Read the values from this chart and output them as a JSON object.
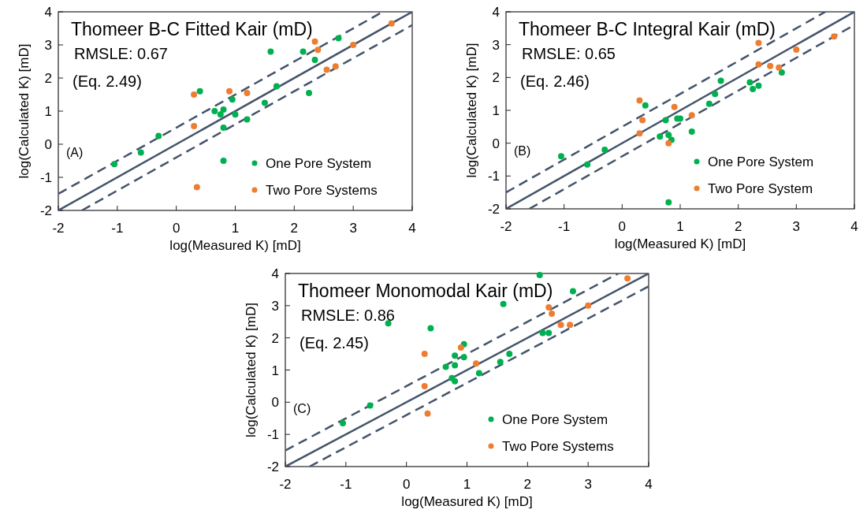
{
  "chart_data": [
    {
      "type": "scatter",
      "title": "Thomeer B-C Fitted Kair (mD)",
      "xlabel": "log(Measured K) [mD]",
      "ylabel": "log(Calculated K) [mD]",
      "annotations": [
        "RMSLE: 0.67",
        "(Eq. 2.49)",
        "(A)"
      ],
      "xlim": [
        -2,
        4
      ],
      "ylim": [
        -2,
        4
      ],
      "xticks": [
        -2,
        -1,
        0,
        1,
        2,
        3,
        4
      ],
      "yticks": [
        -2,
        -1,
        0,
        1,
        2,
        3,
        4
      ],
      "legend": "bottom right",
      "series": [
        {
          "name": "One Pore System",
          "color": "#00b050",
          "marker": "circle",
          "x": [
            -1.05,
            -0.6,
            -0.3,
            0.4,
            0.65,
            0.75,
            0.8,
            0.8,
            0.8,
            0.95,
            1.0,
            1.2,
            1.5,
            1.6,
            1.7,
            2.15,
            2.25,
            2.35,
            2.75
          ],
          "values": [
            -0.6,
            -0.25,
            0.25,
            1.6,
            1.0,
            0.9,
            1.05,
            0.5,
            -0.5,
            1.35,
            0.9,
            0.75,
            1.25,
            2.8,
            1.75,
            2.8,
            1.55,
            2.55,
            3.2
          ]
        },
        {
          "name": "Two Pore Systems",
          "color": "#ed7d31",
          "marker": "circle",
          "x": [
            0.3,
            0.3,
            0.35,
            0.9,
            1.2,
            2.35,
            2.4,
            2.55,
            2.7,
            3.0,
            3.65
          ],
          "values": [
            1.5,
            0.55,
            -1.3,
            1.6,
            1.55,
            3.1,
            2.85,
            2.25,
            2.35,
            3.0,
            3.65
          ]
        },
        {
          "type": "line",
          "color": "#44546a",
          "line_style": "solid",
          "x": [
            -2,
            4
          ],
          "values": [
            -2,
            4
          ]
        },
        {
          "type": "line",
          "color": "#44546a",
          "line_style": "dashed",
          "x": [
            -2,
            3.5
          ],
          "values": [
            -1.5,
            4
          ]
        },
        {
          "type": "line",
          "color": "#44546a",
          "line_style": "dashed",
          "x": [
            -1.6,
            4
          ],
          "values": [
            -2,
            3.6
          ]
        }
      ]
    },
    {
      "type": "scatter",
      "title": "Thomeer B-C Integral Kair (mD)",
      "xlabel": "log(Measured K) [mD]",
      "ylabel": "log(Calculated K) [mD]",
      "annotations": [
        "RMSLE: 0.65",
        "(Eq. 2.46)",
        "(B)"
      ],
      "xlim": [
        -2,
        4
      ],
      "ylim": [
        -2,
        4
      ],
      "xticks": [
        -2,
        -1,
        0,
        1,
        2,
        3,
        4
      ],
      "yticks": [
        -2,
        -1,
        0,
        1,
        2,
        3,
        4
      ],
      "legend": "bottom right",
      "series": [
        {
          "name": "One Pore System",
          "color": "#00b050",
          "marker": "circle",
          "x": [
            -1.05,
            -0.6,
            -0.3,
            0.4,
            0.65,
            0.75,
            0.8,
            0.8,
            0.85,
            0.95,
            1.0,
            1.2,
            1.5,
            1.6,
            1.7,
            2.2,
            2.25,
            2.35,
            2.75
          ],
          "values": [
            -0.4,
            -0.65,
            -0.2,
            1.15,
            0.2,
            0.7,
            0.25,
            -1.8,
            0.1,
            0.75,
            0.75,
            0.35,
            1.2,
            1.5,
            1.9,
            1.85,
            1.65,
            1.75,
            2.15
          ]
        },
        {
          "name": "Two Pore System",
          "color": "#ed7d31",
          "marker": "circle",
          "x": [
            0.3,
            0.35,
            0.3,
            0.8,
            0.9,
            1.2,
            2.35,
            2.35,
            2.55,
            2.7,
            3.0,
            3.65
          ],
          "values": [
            1.3,
            0.7,
            0.3,
            0.0,
            1.1,
            0.85,
            3.05,
            2.4,
            2.35,
            2.3,
            2.85,
            3.25
          ]
        },
        {
          "type": "line",
          "color": "#44546a",
          "line_style": "solid",
          "x": [
            -2,
            4
          ],
          "values": [
            -2,
            4
          ]
        },
        {
          "type": "line",
          "color": "#44546a",
          "line_style": "dashed",
          "x": [
            -2,
            3.5
          ],
          "values": [
            -1.5,
            4
          ]
        },
        {
          "type": "line",
          "color": "#44546a",
          "line_style": "dashed",
          "x": [
            -1.6,
            4
          ],
          "values": [
            -2,
            3.6
          ]
        }
      ]
    },
    {
      "type": "scatter",
      "title": "Thomeer Monomodal Kair (mD)",
      "xlabel": "log(Measured K) [mD]",
      "ylabel": "log(Calculated K) [mD]",
      "annotations": [
        "RMSLE: 0.86",
        "(Eq. 2.45)",
        "(C)"
      ],
      "xlim": [
        -2,
        4
      ],
      "ylim": [
        -2,
        4
      ],
      "xticks": [
        -2,
        -1,
        0,
        1,
        2,
        3,
        4
      ],
      "yticks": [
        -2,
        -1,
        0,
        1,
        2,
        3,
        4
      ],
      "legend": "bottom right",
      "series": [
        {
          "name": "One Pore System",
          "color": "#00b050",
          "marker": "circle",
          "x": [
            -1.05,
            -0.6,
            -0.3,
            0.4,
            0.65,
            0.75,
            0.8,
            0.8,
            0.8,
            0.95,
            0.95,
            1.2,
            1.55,
            1.6,
            1.7,
            2.2,
            2.25,
            2.35,
            2.75
          ],
          "values": [
            -0.65,
            -0.1,
            2.45,
            2.3,
            1.1,
            0.75,
            0.65,
            1.45,
            1.15,
            1.8,
            1.4,
            0.9,
            1.25,
            3.05,
            1.5,
            3.95,
            2.15,
            2.15,
            3.45
          ]
        },
        {
          "name": "Two Pore Systems",
          "color": "#ed7d31",
          "marker": "circle",
          "x": [
            0.3,
            0.3,
            0.35,
            0.9,
            1.15,
            2.35,
            2.4,
            2.55,
            2.7,
            3.0,
            3.65
          ],
          "values": [
            1.5,
            0.5,
            -0.35,
            1.7,
            1.2,
            2.95,
            2.75,
            2.4,
            2.4,
            3.0,
            3.85
          ]
        },
        {
          "type": "line",
          "color": "#44546a",
          "line_style": "solid",
          "x": [
            -2,
            4
          ],
          "values": [
            -2,
            4
          ]
        },
        {
          "type": "line",
          "color": "#44546a",
          "line_style": "dashed",
          "x": [
            -2,
            3.5
          ],
          "values": [
            -1.5,
            4
          ]
        },
        {
          "type": "line",
          "color": "#44546a",
          "line_style": "dashed",
          "x": [
            -1.6,
            4
          ],
          "values": [
            -2,
            3.6
          ]
        }
      ]
    }
  ]
}
